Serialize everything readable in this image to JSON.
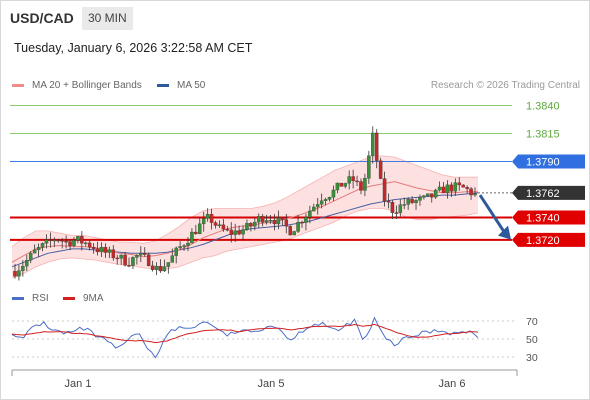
{
  "header": {
    "pair": "USD/CAD",
    "timeframe": "30 MIN",
    "timestamp": "Tuesday, January 6, 2026 3:22:58 AM CET"
  },
  "credit": "Research © 2026 Trading Central",
  "legend": {
    "main": [
      {
        "label": "MA 20 + Bollinger Bands",
        "color": "#f08c8c"
      },
      {
        "label": "MA 50",
        "color": "#2e5a9c"
      }
    ],
    "rsi": [
      {
        "label": "RSI",
        "color": "#4b6fc6"
      },
      {
        "label": "9MA",
        "color": "#d32020"
      }
    ]
  },
  "colors": {
    "resistance": "#8cc870",
    "pivot": "#3b7de0",
    "support": "#d50000",
    "price": "#333333",
    "candle_up": "#3a8f3a",
    "candle_down": "#c62828",
    "arrow": "#2e5a9c",
    "band": "#fde0e0"
  },
  "chart_data": [
    {
      "type": "candlestick",
      "title": "USD/CAD 30 MIN",
      "x_ticks": [
        "Jan 1",
        "Jan 5",
        "Jan 6"
      ],
      "ylim": [
        1.3686,
        1.3852
      ],
      "levels": [
        {
          "value": 1.384,
          "label": "1.3840",
          "kind": "resistance"
        },
        {
          "value": 1.3815,
          "label": "1.3815",
          "kind": "resistance"
        },
        {
          "value": 1.379,
          "label": "1.3790",
          "kind": "pivot"
        },
        {
          "value": 1.3762,
          "label": "1.3762",
          "kind": "price"
        },
        {
          "value": 1.374,
          "label": "1.3740",
          "kind": "support"
        },
        {
          "value": 1.372,
          "label": "1.3720",
          "kind": "support"
        }
      ],
      "last_price": 1.3762,
      "forecast_arrow": {
        "from": 1.376,
        "to": 1.3722
      },
      "close_path": [
        1.3692,
        1.37,
        1.371,
        1.3716,
        1.3722,
        1.3718,
        1.372,
        1.3717,
        1.3712,
        1.3708,
        1.3705,
        1.37,
        1.3706,
        1.3702,
        1.3693,
        1.37,
        1.3712,
        1.3722,
        1.3732,
        1.374,
        1.373,
        1.3726,
        1.3728,
        1.3732,
        1.374,
        1.374,
        1.3735,
        1.3728,
        1.3738,
        1.3748,
        1.3758,
        1.3762,
        1.377,
        1.3774,
        1.3764,
        1.3812,
        1.3758,
        1.3746,
        1.3752,
        1.3754,
        1.3756,
        1.376,
        1.3766,
        1.3767,
        1.3766,
        1.376
      ],
      "ma20_path": [
        1.37,
        1.3706,
        1.3712,
        1.3714,
        1.3715,
        1.3714,
        1.3714,
        1.3713,
        1.3711,
        1.3708,
        1.3707,
        1.3705,
        1.3706,
        1.3708,
        1.3711,
        1.3716,
        1.3722,
        1.3726,
        1.373,
        1.3732,
        1.3733,
        1.3735,
        1.3736,
        1.3739,
        1.3742,
        1.3746,
        1.375,
        1.3755,
        1.376,
        1.3765,
        1.3768,
        1.377,
        1.3772,
        1.3769,
        1.3766,
        1.3764,
        1.3762,
        1.3762,
        1.3763,
        1.3763
      ],
      "ma50_path": [
        1.3696,
        1.37,
        1.3704,
        1.3708,
        1.371,
        1.3712,
        1.3712,
        1.3711,
        1.371,
        1.3709,
        1.3708,
        1.3708,
        1.3708,
        1.3709,
        1.3711,
        1.3713,
        1.3716,
        1.372,
        1.3724,
        1.3728,
        1.373,
        1.3731,
        1.3732,
        1.3733,
        1.3735,
        1.3737,
        1.374,
        1.3743,
        1.3746,
        1.3749,
        1.3752,
        1.3754,
        1.3756,
        1.3757,
        1.3758,
        1.3759,
        1.376,
        1.376,
        1.3761,
        1.3762
      ],
      "band_upper_path": [
        1.3714,
        1.3722,
        1.3728,
        1.3728,
        1.3726,
        1.3724,
        1.3724,
        1.3722,
        1.372,
        1.3718,
        1.3718,
        1.3717,
        1.3719,
        1.3725,
        1.3732,
        1.374,
        1.3746,
        1.3748,
        1.3748,
        1.3748,
        1.3748,
        1.375,
        1.3753,
        1.3758,
        1.3764,
        1.377,
        1.3776,
        1.3782,
        1.3786,
        1.379,
        1.3794,
        1.3795,
        1.3794,
        1.379,
        1.3786,
        1.3782,
        1.3778,
        1.3776,
        1.3776,
        1.3776
      ],
      "band_lower_path": [
        1.3686,
        1.369,
        1.3696,
        1.37,
        1.3703,
        1.3704,
        1.3703,
        1.3702,
        1.37,
        1.3698,
        1.3697,
        1.3695,
        1.3694,
        1.3694,
        1.3696,
        1.37,
        1.3704,
        1.3706,
        1.371,
        1.3712,
        1.3714,
        1.3716,
        1.3718,
        1.372,
        1.3724,
        1.3728,
        1.3732,
        1.3736,
        1.3742,
        1.3746,
        1.3748,
        1.3748,
        1.3746,
        1.374,
        1.3738,
        1.3738,
        1.374,
        1.3741,
        1.3742,
        1.3744
      ]
    },
    {
      "type": "line",
      "title": "RSI",
      "ylim": [
        20,
        80
      ],
      "y_ticks": [
        70,
        50,
        30
      ],
      "series": [
        {
          "name": "RSI",
          "values": [
            58,
            48,
            64,
            68,
            60,
            56,
            58,
            62,
            54,
            48,
            40,
            44,
            58,
            42,
            30,
            56,
            62,
            62,
            66,
            70,
            58,
            54,
            60,
            56,
            62,
            66,
            60,
            48,
            60,
            66,
            68,
            58,
            62,
            72,
            46,
            72,
            50,
            44,
            50,
            54,
            58,
            60,
            58,
            56,
            58,
            54
          ]
        },
        {
          "name": "9MA",
          "values": [
            56,
            54,
            56,
            58,
            58,
            58,
            56,
            56,
            54,
            52,
            50,
            48,
            48,
            48,
            46,
            48,
            52,
            56,
            58,
            60,
            60,
            60,
            58,
            60,
            62,
            62,
            62,
            60,
            62,
            64,
            64,
            64,
            64,
            66,
            64,
            66,
            62,
            58,
            54,
            52,
            52,
            54,
            56,
            56,
            58,
            58
          ]
        }
      ]
    }
  ]
}
